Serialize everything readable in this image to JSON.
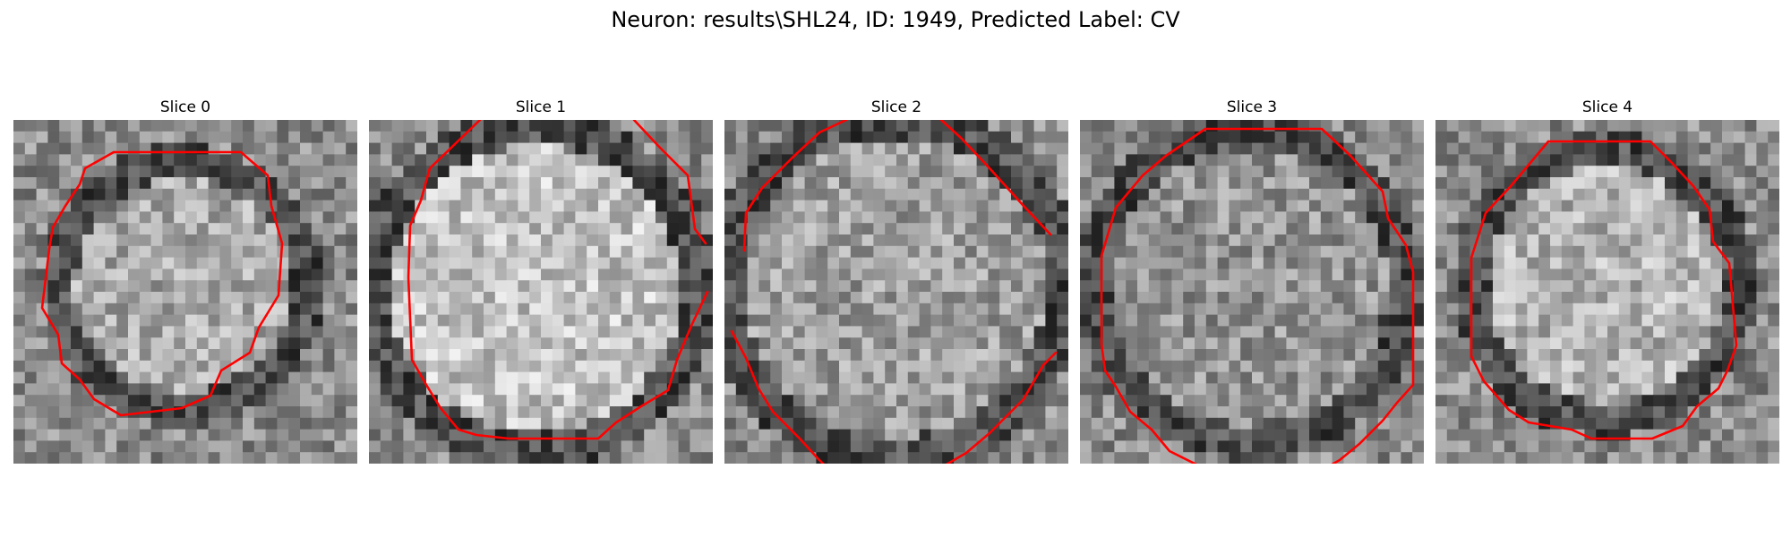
{
  "figure": {
    "title": "Neuron: results\\SHL24, ID: 1949, Predicted Label: CV"
  },
  "panels": [
    {
      "title": "Slice 0"
    },
    {
      "title": "Slice 1"
    },
    {
      "title": "Slice 2"
    },
    {
      "title": "Slice 3"
    },
    {
      "title": "Slice 4"
    }
  ],
  "colors": {
    "contour": "#ff0000",
    "colormap": "gray"
  }
}
